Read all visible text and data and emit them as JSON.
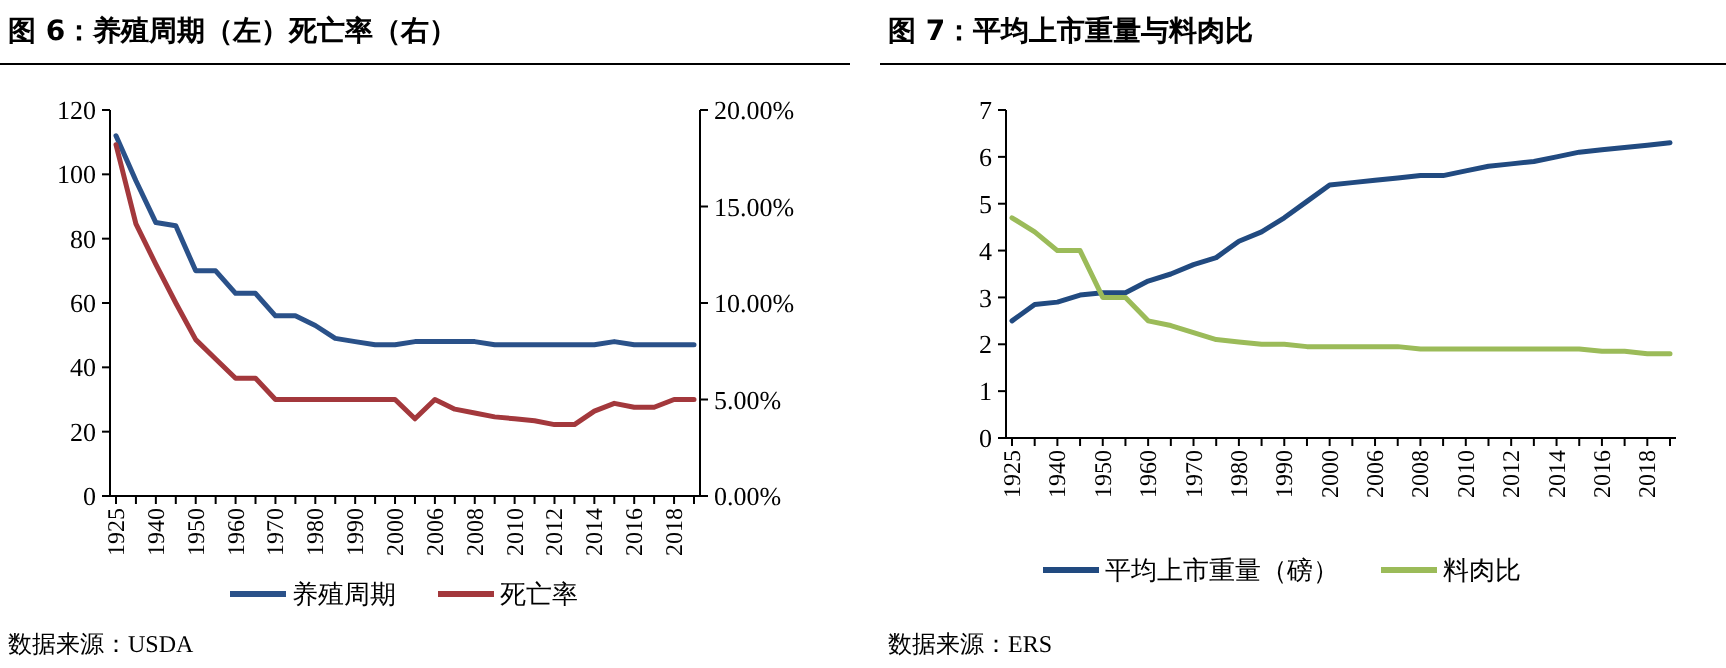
{
  "chart_data": [
    {
      "type": "line",
      "title": "图 6：养殖周期（左）死亡率（右）",
      "categories": [
        "1925",
        null,
        "1940",
        null,
        "1950",
        null,
        "1960",
        null,
        "1970",
        null,
        "1980",
        null,
        "1990",
        null,
        "2000",
        null,
        "2006",
        null,
        "2008",
        null,
        "2010",
        null,
        "2012",
        null,
        "2014",
        null,
        "2016",
        null,
        "2018",
        null
      ],
      "series": [
        {
          "name": "养殖周期",
          "color": "#2a5189",
          "values": [
            112,
            98,
            85,
            84,
            70,
            70,
            63,
            63,
            56,
            56,
            53,
            49,
            48,
            47,
            47,
            48,
            48,
            48,
            48,
            47,
            47,
            47,
            47,
            47,
            47,
            48,
            47,
            47,
            47,
            47
          ]
        },
        {
          "name": "死亡率",
          "color": "#a3383c",
          "axis": "y2",
          "values": [
            18.2,
            14.1,
            12.0,
            10.0,
            8.1,
            7.1,
            6.1,
            6.1,
            5.0,
            5.0,
            5.0,
            5.0,
            5.0,
            5.0,
            5.0,
            4.0,
            5.0,
            4.5,
            4.3,
            4.1,
            4.0,
            3.9,
            3.7,
            3.7,
            4.4,
            4.8,
            4.6,
            4.6,
            5.0,
            5.0
          ]
        }
      ],
      "ylim": [
        0,
        120
      ],
      "yticks": [
        0,
        20,
        40,
        60,
        80,
        100,
        120
      ],
      "y2lim": [
        0,
        20
      ],
      "y2ticks": [
        {
          "value": 0,
          "label": "0.00%"
        },
        {
          "value": 5,
          "label": "5.00%"
        },
        {
          "value": 10,
          "label": "10.00%"
        },
        {
          "value": 15,
          "label": "15.00%"
        },
        {
          "value": 20,
          "label": "20.00%"
        }
      ],
      "legend": "bottom",
      "grid": false,
      "marker": "none",
      "line_style": "solid",
      "annotations": [
        "数据来源：USDA"
      ]
    },
    {
      "type": "line",
      "title": "图 7：平均上市重量与料肉比",
      "categories": [
        "1925",
        null,
        "1940",
        null,
        "1950",
        null,
        "1960",
        null,
        "1970",
        null,
        "1980",
        null,
        "1990",
        null,
        "2000",
        null,
        "2006",
        null,
        "2008",
        null,
        "2010",
        null,
        "2012",
        null,
        "2014",
        null,
        "2016",
        null,
        "2018",
        null
      ],
      "series": [
        {
          "name": "平均上市重量（磅）",
          "color": "#214a80",
          "values": [
            2.5,
            2.85,
            2.9,
            3.05,
            3.1,
            3.1,
            3.35,
            3.5,
            3.7,
            3.85,
            4.2,
            4.4,
            4.7,
            5.05,
            5.4,
            5.45,
            5.5,
            5.55,
            5.6,
            5.6,
            5.7,
            5.8,
            5.85,
            5.9,
            6.0,
            6.1,
            6.15,
            6.2,
            6.25,
            6.3
          ]
        },
        {
          "name": "料肉比",
          "color": "#9bbb59",
          "values": [
            4.7,
            4.4,
            4.0,
            4.0,
            3.0,
            3.0,
            2.5,
            2.4,
            2.25,
            2.1,
            2.05,
            2.0,
            2.0,
            1.95,
            1.95,
            1.95,
            1.95,
            1.95,
            1.9,
            1.9,
            1.9,
            1.9,
            1.9,
            1.9,
            1.9,
            1.9,
            1.85,
            1.85,
            1.8,
            1.8
          ]
        }
      ],
      "ylim": [
        0,
        7
      ],
      "yticks": [
        0,
        1,
        2,
        3,
        4,
        5,
        6,
        7
      ],
      "legend": "bottom",
      "grid": false,
      "marker": "none",
      "line_style": "solid",
      "annotations": [
        "数据来源：ERS"
      ]
    }
  ]
}
